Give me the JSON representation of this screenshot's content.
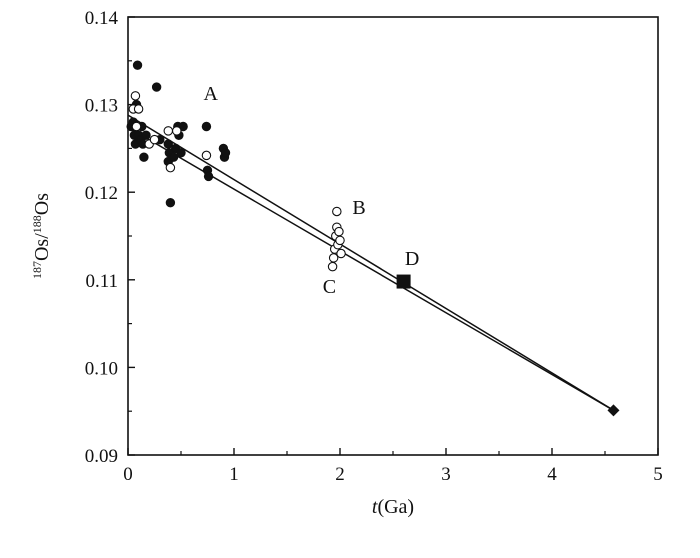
{
  "chart_data": {
    "type": "scatter",
    "title": "",
    "xlabel": "t(Ga)",
    "ylabel": "187Os/188Os",
    "xlim": [
      0,
      5
    ],
    "ylim": [
      0.09,
      0.14
    ],
    "x_ticks": [
      0,
      1,
      2,
      3,
      4,
      5
    ],
    "x_tick_labels": [
      "0",
      "1",
      "2",
      "3",
      "4",
      "5"
    ],
    "y_ticks": [
      0.09,
      0.1,
      0.11,
      0.12,
      0.13,
      0.14
    ],
    "y_tick_labels": [
      "0.09",
      "0.10",
      "0.11",
      "0.12",
      "0.13",
      "0.14"
    ],
    "grid": false,
    "series": [
      {
        "marker": "filled-circle",
        "points": [
          [
            0.03,
            0.1275
          ],
          [
            0.05,
            0.128
          ],
          [
            0.06,
            0.1265
          ],
          [
            0.07,
            0.1255
          ],
          [
            0.08,
            0.13
          ],
          [
            0.09,
            0.1345
          ],
          [
            0.1,
            0.1265
          ],
          [
            0.12,
            0.126
          ],
          [
            0.13,
            0.1275
          ],
          [
            0.14,
            0.1255
          ],
          [
            0.15,
            0.124
          ],
          [
            0.17,
            0.1265
          ],
          [
            0.27,
            0.132
          ],
          [
            0.3,
            0.126
          ],
          [
            0.38,
            0.1255
          ],
          [
            0.38,
            0.1235
          ],
          [
            0.39,
            0.1245
          ],
          [
            0.4,
            0.1188
          ],
          [
            0.43,
            0.124
          ],
          [
            0.45,
            0.125
          ],
          [
            0.47,
            0.1275
          ],
          [
            0.48,
            0.1265
          ],
          [
            0.5,
            0.1245
          ],
          [
            0.52,
            0.1275
          ],
          [
            0.74,
            0.1275
          ],
          [
            0.75,
            0.1225
          ],
          [
            0.76,
            0.1218
          ],
          [
            0.9,
            0.125
          ],
          [
            0.91,
            0.124
          ],
          [
            0.92,
            0.1245
          ]
        ]
      },
      {
        "marker": "open-circle",
        "points": [
          [
            0.05,
            0.1295
          ],
          [
            0.07,
            0.131
          ],
          [
            0.08,
            0.1275
          ],
          [
            0.1,
            0.1295
          ],
          [
            0.2,
            0.1255
          ],
          [
            0.25,
            0.126
          ],
          [
            0.38,
            0.127
          ],
          [
            0.4,
            0.1228
          ],
          [
            0.46,
            0.127
          ],
          [
            0.74,
            0.1242
          ],
          [
            1.93,
            0.1115
          ],
          [
            1.94,
            0.1125
          ],
          [
            1.95,
            0.1135
          ],
          [
            1.96,
            0.115
          ],
          [
            1.97,
            0.1178
          ],
          [
            1.97,
            0.116
          ],
          [
            1.98,
            0.114
          ],
          [
            1.99,
            0.1155
          ],
          [
            2.0,
            0.1145
          ],
          [
            2.01,
            0.113
          ]
        ]
      },
      {
        "marker": "filled-square",
        "points": [
          [
            2.6,
            0.1098
          ]
        ]
      },
      {
        "marker": "filled-diamond",
        "points": [
          [
            4.58,
            0.0951
          ]
        ]
      }
    ],
    "lines": [
      {
        "from": [
          0,
          0.1288
        ],
        "to": [
          4.58,
          0.0951
        ]
      },
      {
        "from": [
          0,
          0.1274
        ],
        "to": [
          4.58,
          0.0951
        ]
      }
    ],
    "annotations": [
      {
        "text": "A",
        "x": 0.78,
        "y": 0.1305
      },
      {
        "text": "B",
        "x": 2.18,
        "y": 0.1175
      },
      {
        "text": "C",
        "x": 1.9,
        "y": 0.1085
      },
      {
        "text": "D",
        "x": 2.68,
        "y": 0.1117
      }
    ]
  }
}
